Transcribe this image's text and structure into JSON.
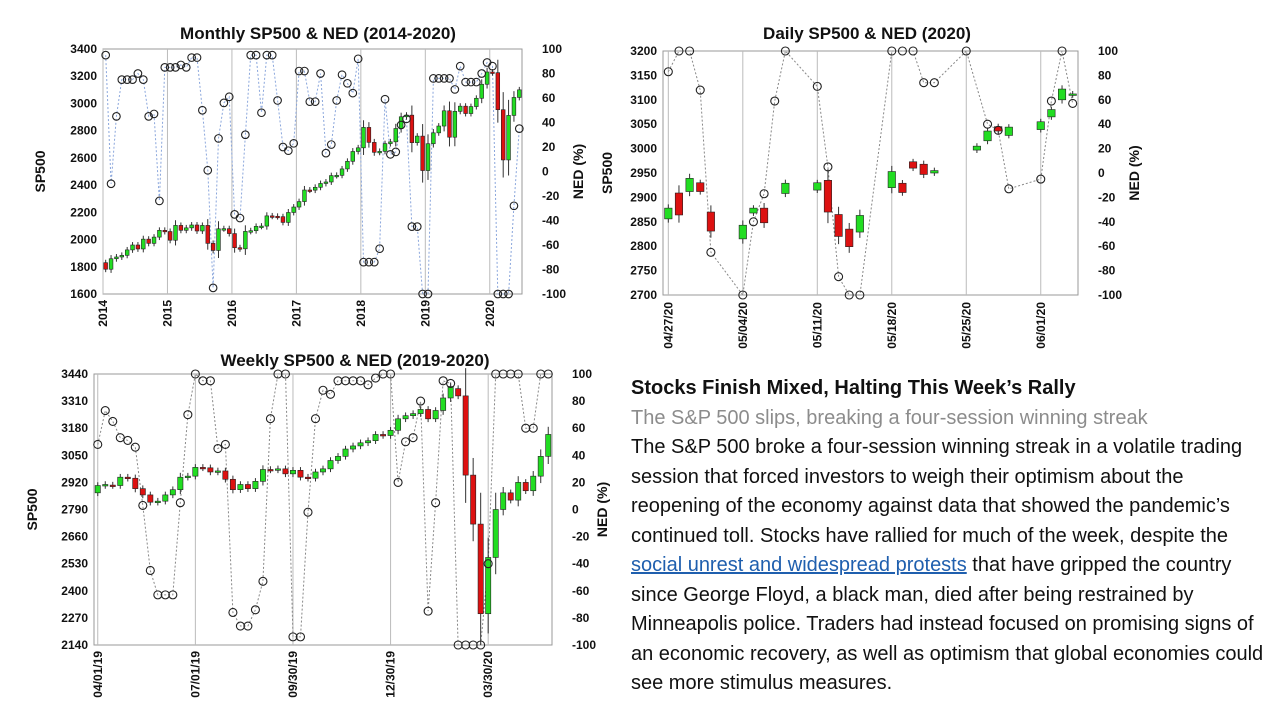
{
  "article": {
    "headline": "Stocks Finish Mixed, Halting This Week’s Rally",
    "subhead": "The S&P 500 slips, breaking a four-session winning streak",
    "body_before_link": "The S&P 500 broke a four-session winning streak in a volatile trading session that forced investors to weigh their optimism about the reopening of the economy against data that showed the pandemic’s continued toll. Stocks have rallied for much of the week, despite the ",
    "link_text": "social unrest and widespread protests",
    "body_after_link": " that have gripped the country since George Floyd, a black man, died after being restrained by Minneapolis police. Traders had instead focused on promising signs of an economic recovery, as well as optimism that global economies could see more stimulus measures."
  },
  "colors": {
    "up": "#22dd22",
    "down": "#dd1111",
    "ned_line": "#8aa6dc",
    "ned_line_gray": "#888888",
    "grid": "#bbbbbb"
  },
  "chart_data": [
    {
      "id": "monthly",
      "type": "candlestick",
      "title": "Monthly SP500 & NED (2014-2020)",
      "ylabel": "SP500",
      "y2label": "NED (%)",
      "ylim": [
        1600,
        3400
      ],
      "yticks": [
        1600,
        1800,
        2000,
        2200,
        2400,
        2600,
        2800,
        3000,
        3200,
        3400
      ],
      "y2lim": [
        -100,
        100
      ],
      "y2ticks": [
        -100,
        -80,
        -60,
        -40,
        -20,
        0,
        20,
        40,
        60,
        80,
        100
      ],
      "xlabels": [
        "2014",
        "2015",
        "2016",
        "2017",
        "2018",
        "2019",
        "2020"
      ],
      "candles": [
        [
          1830,
          1782
        ],
        [
          1782,
          1859
        ],
        [
          1859,
          1872
        ],
        [
          1872,
          1884
        ],
        [
          1884,
          1924
        ],
        [
          1924,
          1960
        ],
        [
          1960,
          1931
        ],
        [
          1931,
          2003
        ],
        [
          2003,
          1972
        ],
        [
          1972,
          2018
        ],
        [
          2018,
          2068
        ],
        [
          2068,
          2059
        ],
        [
          2059,
          1995
        ],
        [
          1995,
          2104
        ],
        [
          2104,
          2068
        ],
        [
          2068,
          2086
        ],
        [
          2086,
          2107
        ],
        [
          2107,
          2063
        ],
        [
          2063,
          2104
        ],
        [
          2104,
          1972
        ],
        [
          1972,
          1920
        ],
        [
          1920,
          2079
        ],
        [
          2079,
          2080
        ],
        [
          2080,
          2044
        ],
        [
          2044,
          1940
        ],
        [
          1940,
          1932
        ],
        [
          1932,
          2060
        ],
        [
          2060,
          2065
        ],
        [
          2065,
          2097
        ],
        [
          2097,
          2099
        ],
        [
          2099,
          2174
        ],
        [
          2174,
          2171
        ],
        [
          2171,
          2168
        ],
        [
          2168,
          2126
        ],
        [
          2126,
          2199
        ],
        [
          2199,
          2239
        ],
        [
          2239,
          2279
        ],
        [
          2279,
          2364
        ],
        [
          2364,
          2363
        ],
        [
          2363,
          2384
        ],
        [
          2384,
          2412
        ],
        [
          2412,
          2423
        ],
        [
          2423,
          2470
        ],
        [
          2470,
          2472
        ],
        [
          2472,
          2519
        ],
        [
          2519,
          2575
        ],
        [
          2575,
          2647
        ],
        [
          2647,
          2674
        ],
        [
          2674,
          2824
        ],
        [
          2824,
          2714
        ],
        [
          2714,
          2641
        ],
        [
          2641,
          2648
        ],
        [
          2648,
          2705
        ],
        [
          2705,
          2718
        ],
        [
          2718,
          2816
        ],
        [
          2816,
          2902
        ],
        [
          2902,
          2914
        ],
        [
          2914,
          2712
        ],
        [
          2712,
          2760
        ],
        [
          2760,
          2507
        ],
        [
          2507,
          2704
        ],
        [
          2704,
          2784
        ],
        [
          2784,
          2834
        ],
        [
          2834,
          2946
        ],
        [
          2946,
          2752
        ],
        [
          2752,
          2942
        ],
        [
          2942,
          2980
        ],
        [
          2980,
          2926
        ],
        [
          2926,
          2977
        ],
        [
          2977,
          3038
        ],
        [
          3038,
          3141
        ],
        [
          3141,
          3231
        ],
        [
          3231,
          3226
        ],
        [
          3226,
          2954
        ],
        [
          2954,
          2585
        ],
        [
          2585,
          2912
        ],
        [
          2912,
          3044
        ],
        [
          3044,
          3100
        ]
      ],
      "ned": [
        95,
        -10,
        45,
        75,
        75,
        75,
        80,
        75,
        45,
        47,
        -24,
        85,
        85,
        85,
        87,
        85,
        93,
        93,
        50,
        1,
        -95,
        27,
        56,
        61,
        -35,
        -38,
        30,
        95,
        95,
        48,
        95,
        95,
        58,
        20,
        17,
        23,
        82,
        82,
        57,
        57,
        80,
        15,
        22,
        58,
        79,
        72,
        64,
        92,
        -74,
        -74,
        -74,
        -63,
        59,
        14,
        16,
        38,
        43,
        -45,
        -45,
        -100,
        -100,
        76,
        76,
        76,
        76,
        67,
        86,
        73,
        73,
        73,
        80,
        89,
        86,
        -100,
        -100,
        -100,
        -28,
        35
      ]
    },
    {
      "id": "daily",
      "type": "candlestick",
      "title": "Daily SP500 & NED (2020)",
      "ylabel": "SP500",
      "y2label": "NED (%)",
      "ylim": [
        2700,
        3200
      ],
      "yticks": [
        2700,
        2750,
        2800,
        2850,
        2900,
        2950,
        3000,
        3050,
        3100,
        3150,
        3200
      ],
      "y2lim": [
        -100,
        100
      ],
      "y2ticks": [
        -100,
        -80,
        -60,
        -40,
        -20,
        0,
        20,
        40,
        60,
        80,
        100
      ],
      "xlabels": [
        "04/27/20",
        "05/04/20",
        "05/11/20",
        "05/18/20",
        "05/25/20",
        "06/01/20"
      ],
      "candles": [
        [
          2856,
          2878
        ],
        [
          2909,
          2864
        ],
        [
          2912,
          2939
        ],
        [
          2930,
          2912
        ],
        [
          2870,
          2831
        ],
        null,
        null,
        [
          2815,
          2843
        ],
        [
          2868,
          2878
        ],
        [
          2878,
          2848
        ],
        null,
        [
          2908,
          2929
        ],
        null,
        null,
        [
          2915,
          2930
        ],
        [
          2935,
          2870
        ],
        [
          2865,
          2820
        ],
        [
          2835,
          2799
        ],
        [
          2829,
          2863
        ],
        null,
        null,
        [
          2920,
          2953
        ],
        [
          2929,
          2910
        ],
        [
          2973,
          2960
        ],
        [
          2968,
          2947
        ],
        [
          2950,
          2955
        ],
        null,
        null,
        null,
        [
          2997,
          3005
        ],
        [
          3016,
          3036
        ],
        [
          3045,
          3036
        ],
        [
          3027,
          3044
        ],
        null,
        null,
        [
          3039,
          3055
        ],
        [
          3065,
          3080
        ],
        [
          3100,
          3122
        ],
        [
          3110,
          3112
        ]
      ],
      "ned": [
        83,
        100,
        100,
        68,
        -65,
        null,
        null,
        -100,
        -40,
        -17,
        59,
        100,
        null,
        null,
        71,
        5,
        -85,
        -100,
        -100,
        null,
        null,
        100,
        100,
        100,
        74,
        74,
        null,
        null,
        100,
        null,
        40,
        35,
        -13,
        null,
        null,
        -5,
        59,
        100,
        57
      ]
    },
    {
      "id": "weekly",
      "type": "candlestick",
      "title": "Weekly SP500 & NED (2019-2020)",
      "ylabel": "SP500",
      "y2label": "NED (%)",
      "ylim": [
        2140,
        3440
      ],
      "yticks": [
        2140,
        2270,
        2400,
        2530,
        2660,
        2790,
        2920,
        3050,
        3180,
        3310,
        3440
      ],
      "y2lim": [
        -100,
        100
      ],
      "y2ticks": [
        -100,
        -80,
        -60,
        -40,
        -20,
        0,
        20,
        40,
        60,
        80,
        100
      ],
      "xlabels": [
        "04/01/19",
        "07/01/19",
        "09/30/19",
        "12/30/19",
        "03/30/20"
      ],
      "candles": [
        [
          2870,
          2905
        ],
        [
          2905,
          2910
        ],
        [
          2907,
          2905
        ],
        [
          2905,
          2945
        ],
        [
          2945,
          2940
        ],
        [
          2940,
          2890
        ],
        [
          2890,
          2860
        ],
        [
          2860,
          2825
        ],
        [
          2825,
          2830
        ],
        [
          2830,
          2860
        ],
        [
          2860,
          2885
        ],
        [
          2885,
          2945
        ],
        [
          2945,
          2950
        ],
        [
          2950,
          2992
        ],
        [
          2992,
          2990
        ],
        [
          2990,
          2970
        ],
        [
          2970,
          2975
        ],
        [
          2975,
          2935
        ],
        [
          2935,
          2885
        ],
        [
          2885,
          2910
        ],
        [
          2910,
          2890
        ],
        [
          2890,
          2925
        ],
        [
          2925,
          2982
        ],
        [
          2982,
          2980
        ],
        [
          2980,
          2985
        ],
        [
          2985,
          2961
        ],
        [
          2961,
          2978
        ],
        [
          2978,
          2945
        ],
        [
          2945,
          2940
        ],
        [
          2940,
          2970
        ],
        [
          2970,
          2985
        ],
        [
          2985,
          3025
        ],
        [
          3025,
          3045
        ],
        [
          3045,
          3080
        ],
        [
          3080,
          3095
        ],
        [
          3095,
          3110
        ],
        [
          3110,
          3120
        ],
        [
          3120,
          3150
        ],
        [
          3150,
          3145
        ],
        [
          3145,
          3170
        ],
        [
          3170,
          3225
        ],
        [
          3225,
          3240
        ],
        [
          3240,
          3250
        ],
        [
          3250,
          3270
        ],
        [
          3270,
          3225
        ],
        [
          3225,
          3265
        ],
        [
          3265,
          3325
        ],
        [
          3325,
          3380
        ],
        [
          3370,
          3335
        ],
        [
          3335,
          2955
        ],
        [
          2955,
          2720
        ],
        [
          2720,
          2290
        ],
        [
          2290,
          2560
        ],
        [
          2560,
          2790
        ],
        [
          2790,
          2870
        ],
        [
          2870,
          2835
        ],
        [
          2835,
          2920
        ],
        [
          2920,
          2880
        ],
        [
          2880,
          2950
        ],
        [
          2950,
          3045
        ],
        [
          3045,
          3150
        ]
      ],
      "ned": [
        48,
        73,
        65,
        53,
        51,
        46,
        3,
        -45,
        -63,
        -63,
        -63,
        5,
        70,
        100,
        95,
        95,
        45,
        48,
        -76,
        -86,
        -86,
        -74,
        -53,
        67,
        100,
        100,
        -94,
        -94,
        -2,
        67,
        88,
        85,
        95,
        95,
        95,
        95,
        92,
        97,
        100,
        100,
        20,
        50,
        53,
        80,
        -75,
        5,
        95,
        93,
        -100,
        -100,
        -100,
        -100,
        -40,
        100,
        100,
        100,
        100,
        60,
        60,
        100,
        100
      ]
    }
  ]
}
